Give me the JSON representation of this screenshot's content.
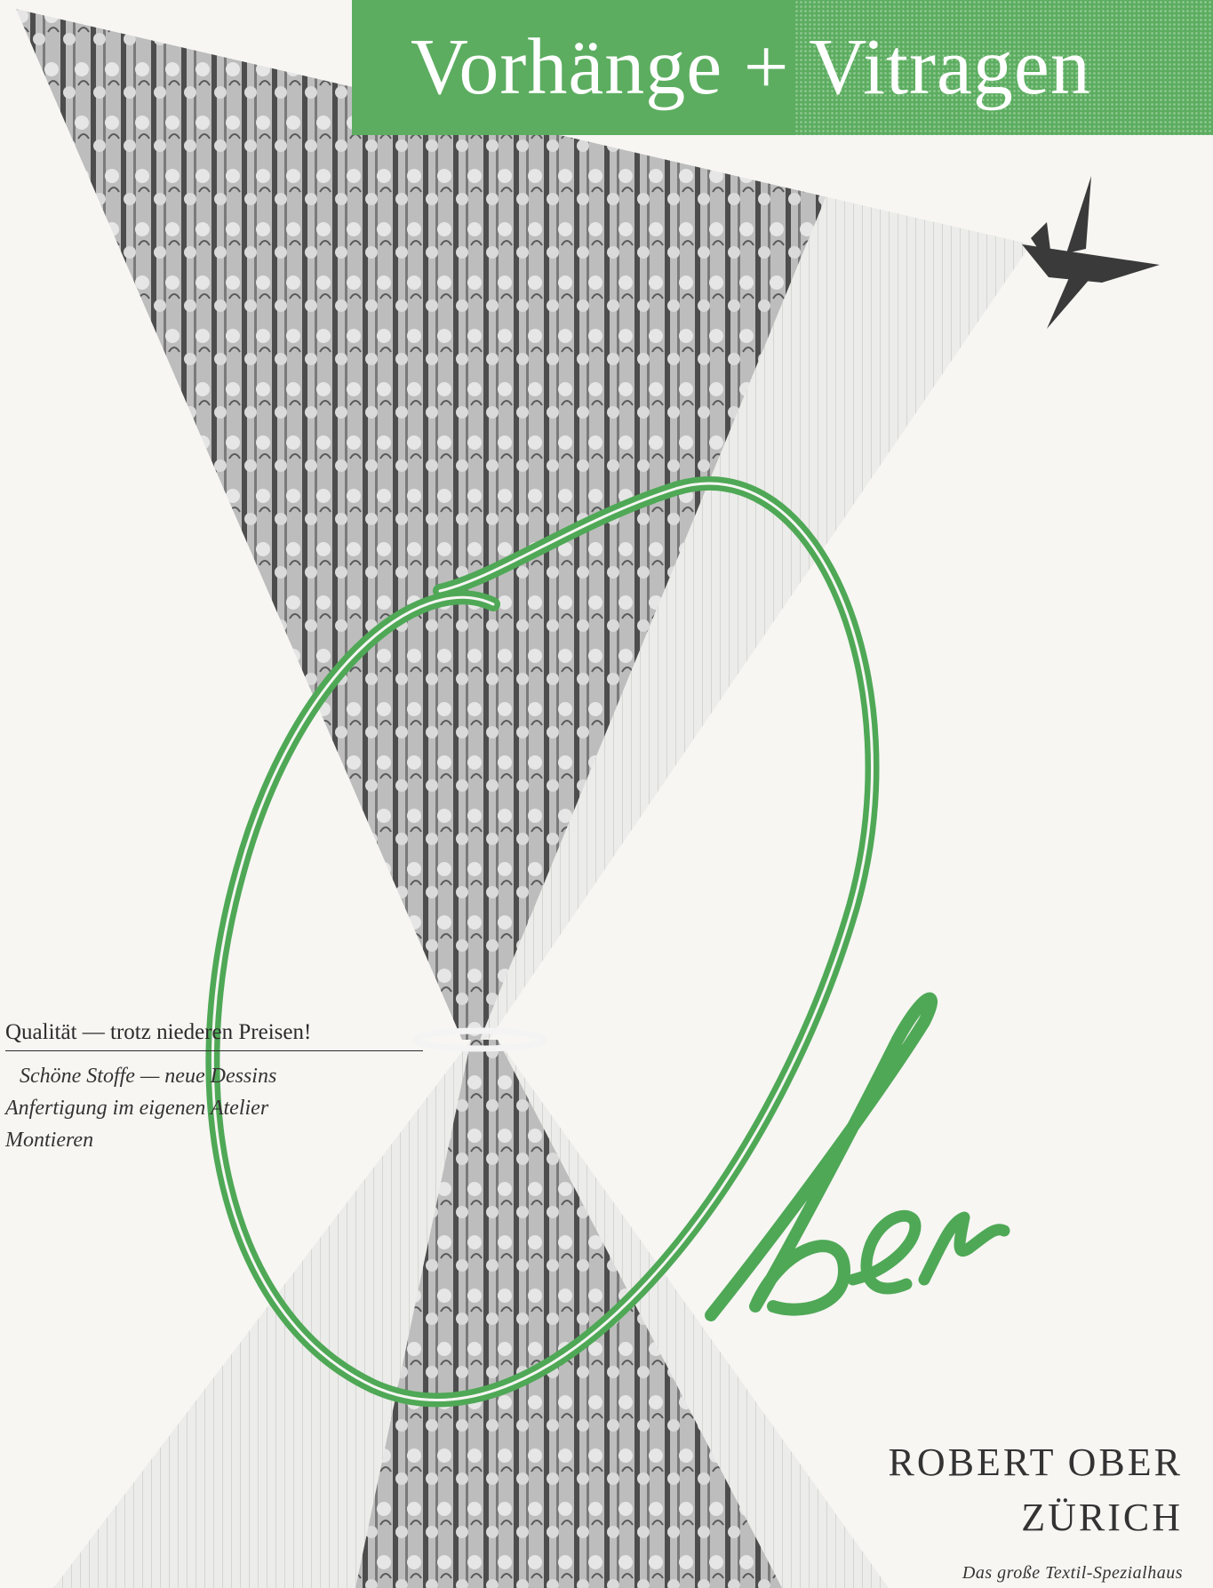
{
  "banner": {
    "title": "Vorhänge + Vitragen",
    "color": "#5cad60"
  },
  "artwork": {
    "curtain_icon": "pleated-curtain-illustration",
    "finial_icon": "curtain-rod-finial-icon",
    "logo_script": "Ober",
    "logo_color": "#4fa856"
  },
  "tagline": "Qualität — trotz niederen Preisen!",
  "features": [
    "Schöne Stoffe — neue Dessins",
    "Anfertigung im eigenen Atelier",
    "Montieren"
  ],
  "company": {
    "name": "ROBERT OBER",
    "city": "ZÜRICH",
    "subtitle": "Das große Textil-Spezialhaus"
  }
}
